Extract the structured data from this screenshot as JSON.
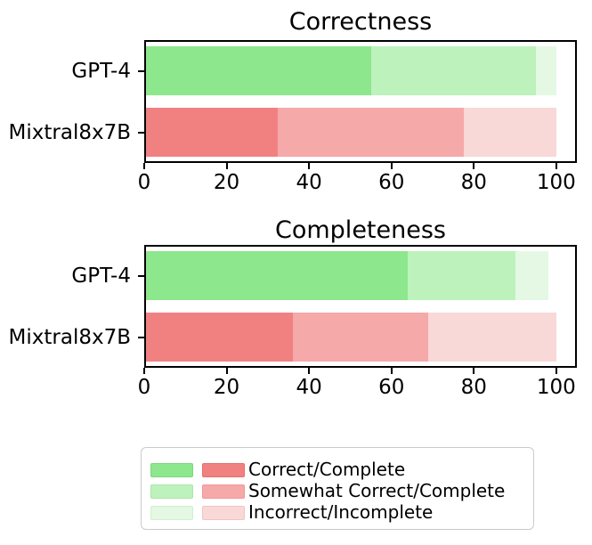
{
  "figure": {
    "background": "#ffffff",
    "text_color": "#000000",
    "spine_color": "#000000"
  },
  "chart_data": [
    {
      "type": "bar",
      "orientation": "horizontal",
      "stacked": true,
      "title": "Correctness",
      "categories": [
        "GPT-4",
        "Mixtral8x7B"
      ],
      "series": [
        {
          "name": "Correct/Complete",
          "values": [
            55,
            32.5
          ]
        },
        {
          "name": "Somewhat Correct/Complete",
          "values": [
            40,
            45
          ]
        },
        {
          "name": "Incorrect/Incomplete",
          "values": [
            5,
            22.5
          ]
        }
      ],
      "xticks": [
        0,
        20,
        40,
        60,
        80,
        100
      ],
      "xlim": [
        0,
        105
      ],
      "grid": false,
      "legend_position": "below-figure"
    },
    {
      "type": "bar",
      "orientation": "horizontal",
      "stacked": true,
      "title": "Completeness",
      "categories": [
        "GPT-4",
        "Mixtral8x7B"
      ],
      "series": [
        {
          "name": "Correct/Complete",
          "values": [
            64,
            36
          ]
        },
        {
          "name": "Somewhat Correct/Complete",
          "values": [
            26,
            33
          ]
        },
        {
          "name": "Incorrect/Incomplete",
          "values": [
            8,
            31
          ]
        }
      ],
      "xticks": [
        0,
        20,
        40,
        60,
        80,
        100
      ],
      "xlim": [
        0,
        105
      ],
      "grid": false,
      "legend_position": "below-figure"
    }
  ],
  "colors": {
    "GPT-4": {
      "fills": [
        "#8DE78D",
        "#BDF2BD",
        "#E4F8E4"
      ],
      "edges": [
        "#7BD87B",
        "#A8E7A8",
        "#CFF0CF"
      ]
    },
    "Mixtral8x7B": {
      "fills": [
        "#F18181",
        "#F5A9A9",
        "#F9D8D8"
      ],
      "edges": [
        "#E66F6F",
        "#EF9898",
        "#F2C4C4"
      ]
    }
  },
  "legend": {
    "entries": [
      {
        "label": "Correct/Complete",
        "green": "#8DE78D",
        "green_edge": "#7BD87B",
        "red": "#F18181",
        "red_edge": "#E66F6F"
      },
      {
        "label": "Somewhat Correct/Complete",
        "green": "#BDF2BD",
        "green_edge": "#A8E7A8",
        "red": "#F5A9A9",
        "red_edge": "#EF9898"
      },
      {
        "label": "Incorrect/Incomplete",
        "green": "#E4F8E4",
        "green_edge": "#CFF0CF",
        "red": "#F9D8D8",
        "red_edge": "#F2C4C4"
      }
    ]
  }
}
